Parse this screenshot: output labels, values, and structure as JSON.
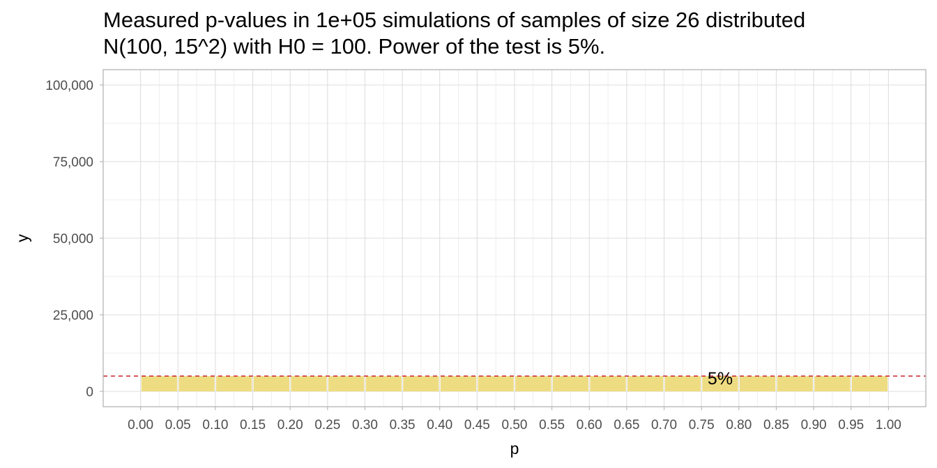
{
  "chart_data": {
    "type": "bar",
    "title_lines": [
      "Measured p-values in 1e+05 simulations of samples of size 26 distributed",
      "N(100, 15^2) with H0 = 100. Power of the test is 5%."
    ],
    "xlabel": "p",
    "ylabel": "y",
    "xlim": [
      -0.05,
      1.05
    ],
    "ylim": [
      -5000,
      105000
    ],
    "x_ticks": [
      "0.00",
      "0.05",
      "0.10",
      "0.15",
      "0.20",
      "0.25",
      "0.30",
      "0.35",
      "0.40",
      "0.45",
      "0.50",
      "0.55",
      "0.60",
      "0.65",
      "0.70",
      "0.75",
      "0.80",
      "0.85",
      "0.90",
      "0.95",
      "1.00"
    ],
    "y_ticks": [
      {
        "value": 0,
        "label": "0"
      },
      {
        "value": 25000,
        "label": "25,000"
      },
      {
        "value": 50000,
        "label": "50,000"
      },
      {
        "value": 75000,
        "label": "75,000"
      },
      {
        "value": 100000,
        "label": "100,000"
      }
    ],
    "bin_width": 0.05,
    "bins": [
      {
        "x_start": 0.0,
        "value": 5000
      },
      {
        "x_start": 0.05,
        "value": 5000
      },
      {
        "x_start": 0.1,
        "value": 5000
      },
      {
        "x_start": 0.15,
        "value": 5000
      },
      {
        "x_start": 0.2,
        "value": 5000
      },
      {
        "x_start": 0.25,
        "value": 5000
      },
      {
        "x_start": 0.3,
        "value": 5000
      },
      {
        "x_start": 0.35,
        "value": 5000
      },
      {
        "x_start": 0.4,
        "value": 5000
      },
      {
        "x_start": 0.45,
        "value": 5000
      },
      {
        "x_start": 0.5,
        "value": 5000
      },
      {
        "x_start": 0.55,
        "value": 5000
      },
      {
        "x_start": 0.6,
        "value": 5000
      },
      {
        "x_start": 0.65,
        "value": 5000
      },
      {
        "x_start": 0.7,
        "value": 5000
      },
      {
        "x_start": 0.75,
        "value": 5000
      },
      {
        "x_start": 0.8,
        "value": 5000
      },
      {
        "x_start": 0.85,
        "value": 5000
      },
      {
        "x_start": 0.9,
        "value": 5000
      },
      {
        "x_start": 0.95,
        "value": 5000
      }
    ],
    "reference_line": {
      "y": 5000,
      "style": "dashed",
      "color": "#c8202a"
    },
    "annotation": {
      "text": "5%",
      "x": 0.775,
      "y": 5000
    },
    "bar_color": "#eedc82",
    "grid": true,
    "legend": "none"
  }
}
